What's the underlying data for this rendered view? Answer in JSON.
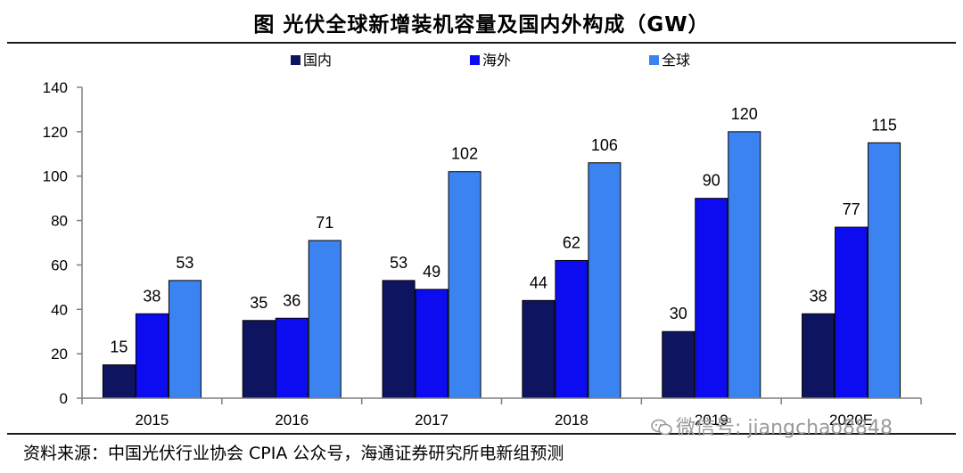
{
  "title": "图  光伏全球新增装机容量及国内外构成（GW）",
  "source": "资料来源：中国光伏行业协会 CPIA 公众号，海通证券研究所电新组预测",
  "watermark": "微信号: jiangchao8848",
  "colors": {
    "domestic": "#0f1460",
    "overseas": "#0d0cf0",
    "global": "#3b83f0",
    "axis": "#7f7f7f"
  },
  "chart_data": {
    "type": "bar",
    "title": "光伏全球新增装机容量及国内外构成（GW）",
    "xlabel": "",
    "ylabel": "",
    "ylim": [
      0,
      140
    ],
    "yticks": [
      0,
      20,
      40,
      60,
      80,
      100,
      120,
      140
    ],
    "categories": [
      "2015",
      "2016",
      "2017",
      "2018",
      "2019",
      "2020E"
    ],
    "legend_position": "top",
    "series": [
      {
        "name": "国内",
        "values": [
          15,
          35,
          53,
          44,
          30,
          38
        ]
      },
      {
        "name": "海外",
        "values": [
          38,
          36,
          49,
          62,
          90,
          77
        ]
      },
      {
        "name": "全球",
        "values": [
          53,
          71,
          102,
          106,
          120,
          115
        ]
      }
    ]
  }
}
